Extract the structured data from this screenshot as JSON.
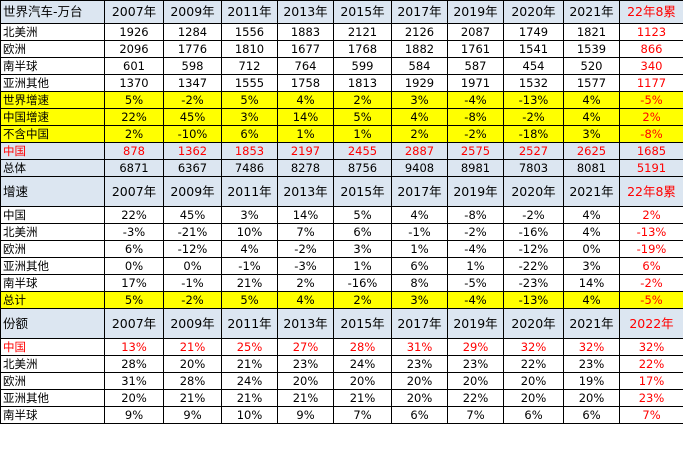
{
  "sections": [
    {
      "header": [
        "世界汽车-万台",
        "2007年",
        "2009年",
        "2011年",
        "2013年",
        "2015年",
        "2017年",
        "2019年",
        "2020年",
        "2021年",
        "22年8累"
      ],
      "header_class": "h1",
      "rows": [
        {
          "style": "",
          "red": "last",
          "cells": [
            "北美洲",
            "1926",
            "1284",
            "1556",
            "1883",
            "2121",
            "2126",
            "2087",
            "1749",
            "1821",
            "1123"
          ]
        },
        {
          "style": "",
          "red": "last",
          "cells": [
            "欧洲",
            "2096",
            "1776",
            "1810",
            "1677",
            "1768",
            "1882",
            "1761",
            "1541",
            "1539",
            "866"
          ]
        },
        {
          "style": "",
          "red": "last",
          "cells": [
            "南半球",
            "601",
            "598",
            "712",
            "764",
            "599",
            "584",
            "587",
            "454",
            "520",
            "340"
          ]
        },
        {
          "style": "",
          "red": "last",
          "cells": [
            "亚洲其他",
            "1370",
            "1347",
            "1555",
            "1758",
            "1813",
            "1929",
            "1971",
            "1532",
            "1577",
            "1177"
          ]
        },
        {
          "style": "yel",
          "red": "last",
          "cells": [
            "世界增速",
            "5%",
            "-2%",
            "5%",
            "4%",
            "2%",
            "3%",
            "-4%",
            "-13%",
            "4%",
            "-5%"
          ]
        },
        {
          "style": "yel",
          "red": "last",
          "cells": [
            "中国增速",
            "22%",
            "45%",
            "3%",
            "14%",
            "5%",
            "4%",
            "-8%",
            "-2%",
            "4%",
            "2%"
          ]
        },
        {
          "style": "yel",
          "red": "last",
          "cells": [
            "不含中国",
            "2%",
            "-10%",
            "6%",
            "1%",
            "1%",
            "2%",
            "-2%",
            "-18%",
            "3%",
            "-8%"
          ]
        },
        {
          "style": "blue",
          "red": "all",
          "cells": [
            "中国",
            "878",
            "1362",
            "1853",
            "2197",
            "2455",
            "2887",
            "2575",
            "2527",
            "2625",
            "1685"
          ]
        },
        {
          "style": "blue",
          "red": "last",
          "cells": [
            "总体",
            "6871",
            "6367",
            "7486",
            "8278",
            "8756",
            "9408",
            "8981",
            "7803",
            "8081",
            "5191"
          ]
        }
      ]
    },
    {
      "header": [
        "增速",
        "2007年",
        "2009年",
        "2011年",
        "2013年",
        "2015年",
        "2017年",
        "2019年",
        "2020年",
        "2021年",
        "22年8累"
      ],
      "header_class": "hdr",
      "rows": [
        {
          "style": "",
          "red": "last",
          "cells": [
            "中国",
            "22%",
            "45%",
            "3%",
            "14%",
            "5%",
            "4%",
            "-8%",
            "-2%",
            "4%",
            "2%"
          ]
        },
        {
          "style": "",
          "red": "last",
          "cells": [
            "北美洲",
            "-3%",
            "-21%",
            "10%",
            "7%",
            "6%",
            "-1%",
            "-2%",
            "-16%",
            "4%",
            "-13%"
          ]
        },
        {
          "style": "",
          "red": "last",
          "cells": [
            "欧洲",
            "6%",
            "-12%",
            "4%",
            "-2%",
            "3%",
            "1%",
            "-4%",
            "-12%",
            "0%",
            "-19%"
          ]
        },
        {
          "style": "",
          "red": "last",
          "cells": [
            "亚洲其他",
            "0%",
            "0%",
            "-1%",
            "-3%",
            "1%",
            "6%",
            "1%",
            "-22%",
            "3%",
            "6%"
          ]
        },
        {
          "style": "",
          "red": "last",
          "cells": [
            "南半球",
            "17%",
            "-1%",
            "21%",
            "2%",
            "-16%",
            "8%",
            "-5%",
            "-23%",
            "14%",
            "-2%"
          ]
        },
        {
          "style": "yel",
          "red": "last",
          "cells": [
            "总计",
            "5%",
            "-2%",
            "5%",
            "4%",
            "2%",
            "3%",
            "-4%",
            "-13%",
            "4%",
            "-5%"
          ]
        }
      ]
    },
    {
      "header": [
        "份额",
        "2007年",
        "2009年",
        "2011年",
        "2013年",
        "2015年",
        "2017年",
        "2019年",
        "2020年",
        "2021年",
        "2022年"
      ],
      "header_class": "hdr",
      "rows": [
        {
          "style": "",
          "red": "all",
          "cells": [
            "中国",
            "13%",
            "21%",
            "25%",
            "27%",
            "28%",
            "31%",
            "29%",
            "32%",
            "32%",
            "32%"
          ]
        },
        {
          "style": "",
          "red": "last",
          "cells": [
            "北美洲",
            "28%",
            "20%",
            "21%",
            "23%",
            "24%",
            "23%",
            "23%",
            "22%",
            "23%",
            "22%"
          ]
        },
        {
          "style": "",
          "red": "last",
          "cells": [
            "欧洲",
            "31%",
            "28%",
            "24%",
            "20%",
            "20%",
            "20%",
            "20%",
            "20%",
            "19%",
            "17%"
          ]
        },
        {
          "style": "",
          "red": "last",
          "cells": [
            "亚洲其他",
            "20%",
            "21%",
            "21%",
            "21%",
            "21%",
            "20%",
            "22%",
            "20%",
            "20%",
            "23%"
          ]
        },
        {
          "style": "",
          "red": "last",
          "cells": [
            "南半球",
            "9%",
            "9%",
            "10%",
            "9%",
            "7%",
            "6%",
            "7%",
            "6%",
            "6%",
            "7%"
          ]
        }
      ]
    }
  ]
}
